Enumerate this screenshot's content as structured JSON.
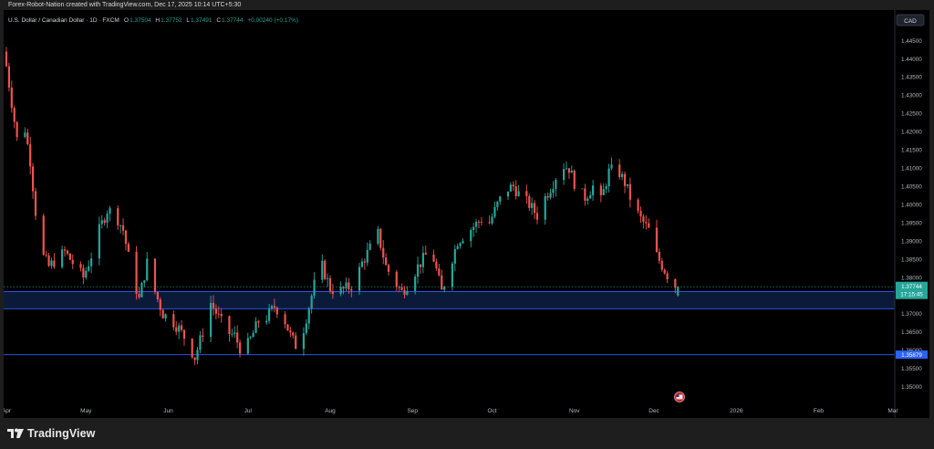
{
  "header": {
    "caption": "Forex-Robot-Nation created with TradingView.com, Dec 17, 2025 10:14 UTC+5:30"
  },
  "footer": {
    "brand": "TradingView"
  },
  "colors": {
    "up": "#26a69a",
    "down": "#ef5350",
    "zone": "#0c1a3a",
    "level": "#2962ff",
    "bg": "#000000"
  },
  "chart_data": {
    "type": "candlestick",
    "title": "U.S. Dollar / Canadian Dollar · 1D · FXCM",
    "ohlc_legend": {
      "o_label": "O",
      "o": "1.37504",
      "h_label": "H",
      "h": "1.37752",
      "l_label": "L",
      "l": "1.37491",
      "c_label": "C",
      "c": "1.37744",
      "change": "+0.00240 (+0.17%)"
    },
    "currency": "CAD",
    "ylim": [
      1.3455,
      1.45
    ],
    "y_ticks": [
      "1.44500",
      "1.44000",
      "1.43500",
      "1.43000",
      "1.42500",
      "1.42000",
      "1.41500",
      "1.41000",
      "1.40500",
      "1.40000",
      "1.39500",
      "1.39000",
      "1.38500",
      "1.38000",
      "1.37500",
      "1.37000",
      "1.36500",
      "1.36000",
      "1.35500",
      "1.35000"
    ],
    "x_ticks": [
      {
        "label": "Apr",
        "day": 0
      },
      {
        "label": "May",
        "day": 30
      },
      {
        "label": "Jun",
        "day": 61
      },
      {
        "label": "Jul",
        "day": 91
      },
      {
        "label": "Aug",
        "day": 122
      },
      {
        "label": "Sep",
        "day": 153
      },
      {
        "label": "Oct",
        "day": 183
      },
      {
        "label": "Nov",
        "day": 214
      },
      {
        "label": "Dec",
        "day": 244
      },
      {
        "label": "2026",
        "day": 275
      },
      {
        "label": "Feb",
        "day": 306
      },
      {
        "label": "Mar",
        "day": 334
      }
    ],
    "last_price": "1.37744",
    "countdown": "17:15:45",
    "level_price": "1.35879",
    "level_value": 1.35879,
    "zone": [
      1.3714,
      1.3761
    ],
    "waypoints": [
      [
        0,
        1.438
      ],
      [
        2,
        1.428
      ],
      [
        4,
        1.418
      ],
      [
        6,
        1.425
      ],
      [
        9,
        1.412
      ],
      [
        11,
        1.398
      ],
      [
        13,
        1.387
      ],
      [
        16,
        1.383
      ],
      [
        19,
        1.385
      ],
      [
        22,
        1.387
      ],
      [
        26,
        1.383
      ],
      [
        29,
        1.38
      ],
      [
        32,
        1.386
      ],
      [
        35,
        1.393
      ],
      [
        38,
        1.3985
      ],
      [
        41,
        1.3975
      ],
      [
        44,
        1.393
      ],
      [
        47,
        1.382
      ],
      [
        50,
        1.374
      ],
      [
        53,
        1.384
      ],
      [
        56,
        1.376
      ],
      [
        59,
        1.37
      ],
      [
        62,
        1.3685
      ],
      [
        65,
        1.366
      ],
      [
        68,
        1.3625
      ],
      [
        71,
        1.358
      ],
      [
        74,
        1.365
      ],
      [
        77,
        1.373
      ],
      [
        80,
        1.369
      ],
      [
        83,
        1.365
      ],
      [
        86,
        1.364
      ],
      [
        89,
        1.359
      ],
      [
        92,
        1.363
      ],
      [
        95,
        1.368
      ],
      [
        98,
        1.369
      ],
      [
        101,
        1.372
      ],
      [
        104,
        1.37
      ],
      [
        107,
        1.364
      ],
      [
        110,
        1.36
      ],
      [
        113,
        1.369
      ],
      [
        116,
        1.378
      ],
      [
        119,
        1.383
      ],
      [
        122,
        1.377
      ],
      [
        125,
        1.376
      ],
      [
        128,
        1.377
      ],
      [
        131,
        1.378
      ],
      [
        134,
        1.384
      ],
      [
        137,
        1.388
      ],
      [
        140,
        1.392
      ],
      [
        143,
        1.383
      ],
      [
        146,
        1.379
      ],
      [
        149,
        1.376
      ],
      [
        152,
        1.379
      ],
      [
        155,
        1.383
      ],
      [
        158,
        1.386
      ],
      [
        161,
        1.385
      ],
      [
        164,
        1.376
      ],
      [
        167,
        1.383
      ],
      [
        170,
        1.39
      ],
      [
        173,
        1.392
      ],
      [
        176,
        1.394
      ],
      [
        179,
        1.396
      ],
      [
        182,
        1.395
      ],
      [
        185,
        1.4
      ],
      [
        188,
        1.404
      ],
      [
        191,
        1.405
      ],
      [
        194,
        1.402
      ],
      [
        197,
        1.4
      ],
      [
        200,
        1.397
      ],
      [
        203,
        1.402
      ],
      [
        206,
        1.406
      ],
      [
        209,
        1.411
      ],
      [
        212,
        1.41
      ],
      [
        215,
        1.404
      ],
      [
        218,
        1.402
      ],
      [
        221,
        1.405
      ],
      [
        224,
        1.401
      ],
      [
        227,
        1.409
      ],
      [
        230,
        1.41
      ],
      [
        233,
        1.406
      ],
      [
        236,
        1.4
      ],
      [
        239,
        1.396
      ],
      [
        242,
        1.393
      ],
      [
        245,
        1.386
      ],
      [
        248,
        1.382
      ],
      [
        251,
        1.378
      ],
      [
        253,
        1.3774
      ]
    ]
  }
}
